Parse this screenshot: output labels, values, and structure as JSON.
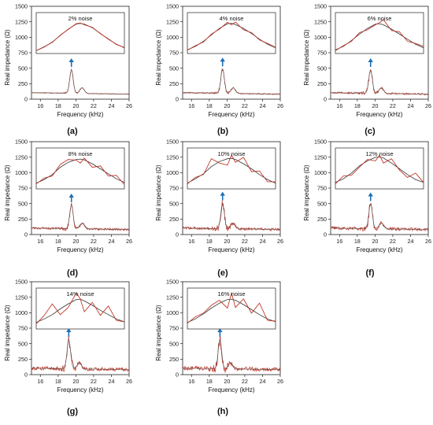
{
  "chart_data": [
    {
      "panel": "(a)",
      "type": "line",
      "noise_label": "2% noise",
      "xlabel": "Frequency (kHz)",
      "ylabel": "Real impedance (Ω)",
      "xlim": [
        15,
        26
      ],
      "ylim": [
        0,
        1500
      ],
      "xticks": [
        16,
        18,
        20,
        22,
        24,
        26
      ],
      "yticks": [
        0,
        250,
        500,
        750,
        1000,
        1250,
        1500
      ],
      "peak_frequency_khz": 19.5,
      "peak_impedance": 470,
      "inset": {
        "xlim": [
          15,
          26
        ],
        "ylim": [
          800,
          1250
        ],
        "series": [
          {
            "x": [
              15,
              16,
              17,
              18,
              19,
              20,
              20.5,
              21,
              22,
              23,
              24,
              25,
              26
            ],
            "y": [
              800,
              850,
              920,
              1010,
              1100,
              1170,
              1180,
              1170,
              1120,
              1040,
              960,
              890,
              840
            ]
          },
          {
            "x": [
              15,
              16,
              17,
              18,
              19,
              20,
              20.5,
              21,
              22,
              23,
              24,
              25,
              26
            ],
            "y": [
              800,
              855,
              915,
              1015,
              1095,
              1175,
              1185,
              1160,
              1125,
              1035,
              965,
              885,
              845
            ]
          }
        ]
      },
      "noise_amplitude": 6
    },
    {
      "panel": "(b)",
      "type": "line",
      "noise_label": "4% noise",
      "xlabel": "Frequency (kHz)",
      "ylabel": "Real impedance (Ω)",
      "xlim": [
        15,
        26
      ],
      "ylim": [
        0,
        1500
      ],
      "xticks": [
        16,
        18,
        20,
        22,
        24,
        26
      ],
      "yticks": [
        0,
        250,
        500,
        750,
        1000,
        1250,
        1500
      ],
      "peak_frequency_khz": 19.5,
      "peak_impedance": 480,
      "inset": {
        "xlim": [
          15,
          26
        ],
        "ylim": [
          800,
          1250
        ],
        "series": [
          {
            "x": [
              15,
              16,
              17,
              18,
              19,
              20,
              20.5,
              21,
              22,
              23,
              24,
              25,
              26
            ],
            "y": [
              810,
              860,
              930,
              1020,
              1110,
              1175,
              1180,
              1165,
              1110,
              1040,
              960,
              890,
              840
            ]
          },
          {
            "x": [
              15,
              16,
              17,
              18,
              19,
              20,
              20.5,
              21,
              22,
              23,
              24,
              25,
              26
            ],
            "y": [
              805,
              870,
              920,
              1030,
              1100,
              1195,
              1160,
              1200,
              1090,
              1050,
              950,
              900,
              845
            ]
          }
        ]
      },
      "noise_amplitude": 10
    },
    {
      "panel": "(c)",
      "type": "line",
      "noise_label": "6% noise",
      "xlabel": "Frequency (kHz)",
      "ylabel": "Real impedance (Ω)",
      "xlim": [
        15,
        26
      ],
      "ylim": [
        0,
        1500
      ],
      "xticks": [
        16,
        18,
        20,
        22,
        24,
        26
      ],
      "yticks": [
        0,
        250,
        500,
        750,
        1000,
        1250,
        1500
      ],
      "peak_frequency_khz": 19.5,
      "peak_impedance": 470,
      "inset": {
        "xlim": [
          15,
          26
        ],
        "ylim": [
          800,
          1250
        ],
        "series": [
          {
            "x": [
              15,
              16,
              17,
              18,
              19,
              20,
              20.5,
              21,
              22,
              23,
              24,
              25,
              26
            ],
            "y": [
              810,
              860,
              940,
              1030,
              1110,
              1170,
              1175,
              1160,
              1100,
              1030,
              960,
              890,
              840
            ]
          },
          {
            "x": [
              15,
              16,
              17,
              18,
              19,
              20,
              20.5,
              21,
              22,
              23,
              24,
              25,
              26
            ],
            "y": [
              800,
              870,
              930,
              1050,
              1090,
              1160,
              1190,
              1230,
              1080,
              1060,
              930,
              900,
              860
            ]
          }
        ]
      },
      "noise_amplitude": 14
    },
    {
      "panel": "(d)",
      "type": "line",
      "noise_label": "8% noise",
      "xlabel": "Frequency (kHz)",
      "ylabel": "Real impedance (Ω)",
      "xlim": [
        15,
        26
      ],
      "ylim": [
        0,
        1500
      ],
      "xticks": [
        16,
        18,
        20,
        22,
        24,
        26
      ],
      "yticks": [
        0,
        250,
        500,
        750,
        1000,
        1250,
        1500
      ],
      "peak_frequency_khz": 19.5,
      "peak_impedance": 470,
      "inset": {
        "xlim": [
          15,
          26
        ],
        "ylim": [
          800,
          1250
        ],
        "series": [
          {
            "x": [
              15,
              16,
              17,
              18,
              19,
              20,
              20.5,
              21,
              22,
              23,
              24,
              25,
              26
            ],
            "y": [
              840,
              890,
              960,
              1060,
              1130,
              1170,
              1175,
              1165,
              1110,
              1040,
              970,
              900,
              850
            ]
          },
          {
            "x": [
              15,
              16,
              17,
              18,
              19,
              20,
              20.5,
              21,
              22,
              23,
              24,
              25,
              26
            ],
            "y": [
              830,
              910,
              940,
              1100,
              1170,
              1160,
              1120,
              1190,
              1060,
              1080,
              940,
              950,
              820
            ]
          }
        ]
      },
      "noise_amplitude": 18
    },
    {
      "panel": "(e)",
      "type": "line",
      "noise_label": "10% noise",
      "xlabel": "Frequency (kHz)",
      "ylabel": "Real impedance (Ω)",
      "xlim": [
        15,
        26
      ],
      "ylim": [
        0,
        1500
      ],
      "xticks": [
        16,
        18,
        20,
        22,
        24,
        26
      ],
      "yticks": [
        0,
        250,
        500,
        750,
        1000,
        1250,
        1500
      ],
      "peak_frequency_khz": 19.5,
      "peak_impedance": 500,
      "inset": {
        "xlim": [
          15,
          26
        ],
        "ylim": [
          800,
          1250
        ],
        "series": [
          {
            "x": [
              15,
              16,
              17,
              18,
              19,
              20,
              20.5,
              21,
              22,
              23,
              24,
              25,
              26
            ],
            "y": [
              840,
              900,
              970,
              1070,
              1140,
              1180,
              1185,
              1170,
              1110,
              1040,
              960,
              890,
              840
            ]
          },
          {
            "x": [
              15,
              16,
              17,
              18,
              19,
              20,
              20.5,
              21,
              22,
              23,
              24,
              25,
              26
            ],
            "y": [
              830,
              920,
              960,
              1180,
              1120,
              1090,
              1230,
              1130,
              1200,
              1000,
              1010,
              860,
              860
            ]
          }
        ]
      },
      "noise_amplitude": 22
    },
    {
      "panel": "(f)",
      "type": "line",
      "noise_label": "12% noise",
      "xlabel": "Frequency (kHz)",
      "ylabel": "Real impedance (Ω)",
      "xlim": [
        15,
        26
      ],
      "ylim": [
        0,
        1500
      ],
      "xticks": [
        16,
        18,
        20,
        22,
        24,
        26
      ],
      "yticks": [
        0,
        250,
        500,
        750,
        1000,
        1250,
        1500
      ],
      "peak_frequency_khz": 19.5,
      "peak_impedance": 490,
      "inset": {
        "xlim": [
          15,
          26
        ],
        "ylim": [
          800,
          1250
        ],
        "series": [
          {
            "x": [
              15,
              16,
              17,
              18,
              19,
              20,
              20.5,
              21,
              22,
              23,
              24,
              25,
              26
            ],
            "y": [
              850,
              900,
              980,
              1080,
              1150,
              1200,
              1205,
              1190,
              1120,
              1040,
              960,
              890,
              850
            ]
          },
          {
            "x": [
              15,
              16,
              17,
              18,
              19,
              20,
              20.5,
              21,
              22,
              23,
              24,
              25,
              26
            ],
            "y": [
              830,
              940,
              950,
              1060,
              1170,
              1150,
              1230,
              1120,
              1180,
              1020,
              920,
              980,
              850
            ]
          }
        ]
      },
      "noise_amplitude": 26
    },
    {
      "panel": "(g)",
      "type": "line",
      "noise_label": "14% noise",
      "xlabel": "Frequency (kHz)",
      "ylabel": "Real impedance (Ω)",
      "xlim": [
        15,
        26
      ],
      "ylim": [
        0,
        1500
      ],
      "xticks": [
        16,
        18,
        20,
        22,
        24,
        26
      ],
      "yticks": [
        0,
        250,
        500,
        750,
        1000,
        1250,
        1500
      ],
      "peak_frequency_khz": 19.2,
      "peak_impedance": 560,
      "inset": {
        "xlim": [
          15,
          26
        ],
        "ylim": [
          800,
          1250
        ],
        "series": [
          {
            "x": [
              15,
              16,
              17,
              18,
              19,
              20,
              20.5,
              21,
              22,
              23,
              24,
              25,
              26
            ],
            "y": [
              850,
              900,
              960,
              1040,
              1110,
              1170,
              1175,
              1150,
              1090,
              1020,
              960,
              900,
              860
            ]
          },
          {
            "x": [
              15,
              16,
              17,
              18,
              19,
              20,
              20.5,
              21,
              22,
              23,
              24,
              25,
              26
            ],
            "y": [
              830,
              950,
              1110,
              960,
              1060,
              1260,
              1180,
              1000,
              1130,
              950,
              1080,
              880,
              860
            ]
          }
        ]
      },
      "noise_amplitude": 30
    },
    {
      "panel": "(h)",
      "type": "line",
      "noise_label": "16% noise",
      "xlabel": "Frequency (kHz)",
      "ylabel": "Real impedance (Ω)",
      "xlim": [
        15,
        26
      ],
      "ylim": [
        0,
        1500
      ],
      "xticks": [
        16,
        18,
        20,
        22,
        24,
        26
      ],
      "yticks": [
        0,
        250,
        500,
        750,
        1000,
        1250,
        1500
      ],
      "peak_frequency_khz": 19.2,
      "peak_impedance": 560,
      "inset": {
        "xlim": [
          15,
          26
        ],
        "ylim": [
          800,
          1250
        ],
        "series": [
          {
            "x": [
              15,
              16,
              17,
              18,
              19,
              20,
              20.5,
              21,
              22,
              23,
              24,
              25,
              26
            ],
            "y": [
              850,
              900,
              970,
              1050,
              1120,
              1170,
              1175,
              1160,
              1100,
              1030,
              960,
              900,
              860
            ]
          },
          {
            "x": [
              15,
              16,
              17,
              18,
              19,
              20,
              20.5,
              21,
              22,
              23,
              24,
              25,
              26
            ],
            "y": [
              840,
              930,
              980,
              1090,
              1160,
              1050,
              1260,
              1060,
              1180,
              980,
              1120,
              880,
              870
            ]
          }
        ]
      },
      "noise_amplitude": 34
    }
  ],
  "colors": {
    "fit_line": "#444444",
    "noisy_line": "#c0392b",
    "arrow": "#1f6fb5",
    "axis": "#222222"
  },
  "icons": {
    "peak_marker": "arrow-up-icon"
  }
}
